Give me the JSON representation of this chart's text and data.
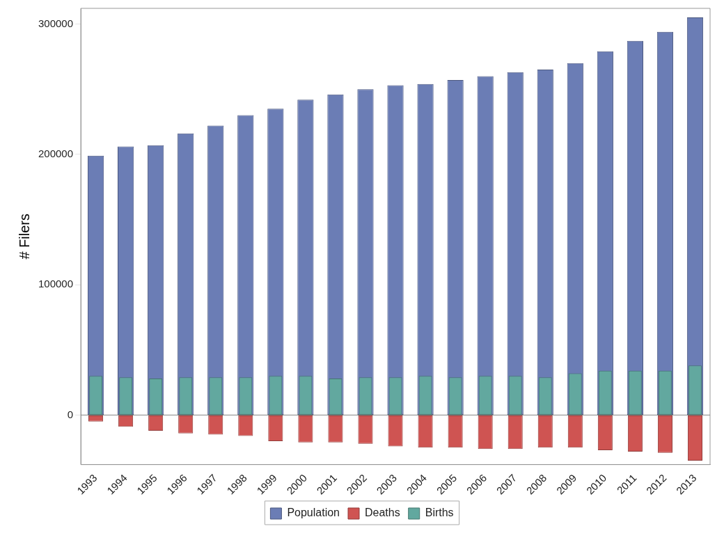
{
  "chart_data": {
    "type": "bar",
    "ylabel": "# Filers",
    "categories": [
      "1993",
      "1994",
      "1995",
      "1996",
      "1997",
      "1998",
      "1999",
      "2000",
      "2001",
      "2002",
      "2003",
      "2004",
      "2005",
      "2006",
      "2007",
      "2008",
      "2009",
      "2010",
      "2011",
      "2012",
      "2013"
    ],
    "series": [
      {
        "name": "Population",
        "color": "#6b7db5",
        "values": [
          199000,
          206000,
          207000,
          216000,
          222000,
          230000,
          235000,
          242000,
          246000,
          250000,
          253000,
          254000,
          257000,
          260000,
          263000,
          265000,
          270000,
          279000,
          287000,
          294000,
          305000
        ]
      },
      {
        "name": "Deaths",
        "color": "#cf5452",
        "values": [
          -5000,
          -9000,
          -12000,
          -14000,
          -15000,
          -16000,
          -20000,
          -21000,
          -21000,
          -22000,
          -24000,
          -25000,
          -25000,
          -26000,
          -26000,
          -25000,
          -25000,
          -27000,
          -28000,
          -29000,
          -35000
        ]
      },
      {
        "name": "Births",
        "color": "#62a89f",
        "values": [
          30000,
          29000,
          28000,
          29000,
          29000,
          29000,
          30000,
          30000,
          28000,
          29000,
          29000,
          30000,
          29000,
          30000,
          30000,
          29000,
          32000,
          34000,
          34000,
          34000,
          38000
        ]
      }
    ],
    "ylim": [
      -38000,
      312000
    ],
    "yticks": [
      0,
      100000,
      200000,
      300000
    ],
    "legend": "bottom"
  }
}
